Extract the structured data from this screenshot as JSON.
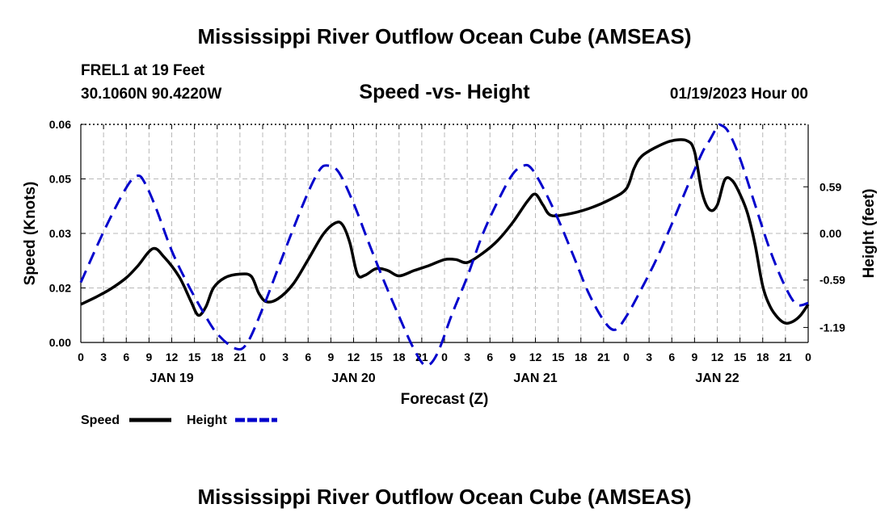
{
  "header": {
    "title": "Mississippi River Outflow Ocean Cube (AMSEAS)",
    "station": "FREL1 at 19 Feet",
    "coordinates": "30.1060N  90.4220W",
    "subtitle": "Speed -vs- Height",
    "run_time": "01/19/2023 Hour 00"
  },
  "footer": {
    "title": "Mississippi River Outflow Ocean Cube (AMSEAS)"
  },
  "chart_data": {
    "type": "line",
    "xlabel": "Forecast (Z)",
    "ylabel_left": "Speed (Knots)",
    "ylabel_right": "Height (feet)",
    "x_range_hours": [
      0,
      96
    ],
    "x_ticks": [
      "0",
      "3",
      "6",
      "9",
      "12",
      "15",
      "18",
      "21",
      "0",
      "3",
      "6",
      "9",
      "12",
      "15",
      "18",
      "21",
      "0",
      "3",
      "6",
      "9",
      "12",
      "15",
      "18",
      "21",
      "0",
      "3",
      "6",
      "9",
      "12",
      "15",
      "18",
      "21",
      "0"
    ],
    "date_labels": [
      {
        "label": "JAN 19",
        "hour": 12
      },
      {
        "label": "JAN 20",
        "hour": 36
      },
      {
        "label": "JAN 21",
        "hour": 60
      },
      {
        "label": "JAN 22",
        "hour": 84
      }
    ],
    "y_left": {
      "ylim": [
        0,
        0.06
      ],
      "ticks": [
        "0.00",
        "0.02",
        "0.03",
        "0.05",
        "0.06"
      ],
      "tick_values": [
        0,
        0.015,
        0.03,
        0.045,
        0.06
      ]
    },
    "y_right": {
      "ylim": [
        -1.38,
        1.38
      ],
      "ticks": [
        "-1.19",
        "-0.59",
        "0.00",
        "0.59"
      ],
      "tick_values": [
        -1.19,
        -0.59,
        0.0,
        0.59
      ]
    },
    "grid": true,
    "legend": [
      {
        "name": "Speed",
        "color": "#000000",
        "style": "solid"
      },
      {
        "name": "Height",
        "color": "#0000cc",
        "style": "dashed"
      }
    ],
    "series": [
      {
        "name": "Speed",
        "axis": "left",
        "color": "#000000",
        "points": [
          [
            0,
            0.0105
          ],
          [
            2,
            0.0125
          ],
          [
            4,
            0.0148
          ],
          [
            6,
            0.0178
          ],
          [
            7.5,
            0.021
          ],
          [
            9.5,
            0.0258
          ],
          [
            11,
            0.0235
          ],
          [
            13,
            0.018
          ],
          [
            14.5,
            0.0115
          ],
          [
            15.5,
            0.0075
          ],
          [
            16.5,
            0.0098
          ],
          [
            17.5,
            0.015
          ],
          [
            19,
            0.0178
          ],
          [
            21,
            0.0188
          ],
          [
            22.5,
            0.0182
          ],
          [
            23.5,
            0.0135
          ],
          [
            24.5,
            0.0112
          ],
          [
            26,
            0.012
          ],
          [
            28,
            0.016
          ],
          [
            30,
            0.0228
          ],
          [
            32,
            0.0298
          ],
          [
            33.5,
            0.0328
          ],
          [
            34.5,
            0.0325
          ],
          [
            35.5,
            0.0275
          ],
          [
            36.5,
            0.0188
          ],
          [
            37.5,
            0.0185
          ],
          [
            39,
            0.0203
          ],
          [
            40.5,
            0.0198
          ],
          [
            42,
            0.0183
          ],
          [
            44,
            0.0198
          ],
          [
            46,
            0.0212
          ],
          [
            48,
            0.0228
          ],
          [
            49.5,
            0.0228
          ],
          [
            51,
            0.022
          ],
          [
            53,
            0.0245
          ],
          [
            55,
            0.028
          ],
          [
            57,
            0.033
          ],
          [
            59,
            0.039
          ],
          [
            60,
            0.0408
          ],
          [
            61,
            0.0378
          ],
          [
            62,
            0.035
          ],
          [
            64,
            0.0352
          ],
          [
            67,
            0.0368
          ],
          [
            70,
            0.0395
          ],
          [
            72,
            0.0423
          ],
          [
            73,
            0.0478
          ],
          [
            74,
            0.0512
          ],
          [
            76,
            0.0538
          ],
          [
            78,
            0.0555
          ],
          [
            80,
            0.0555
          ],
          [
            81,
            0.0525
          ],
          [
            82,
            0.0412
          ],
          [
            83,
            0.0365
          ],
          [
            84,
            0.0378
          ],
          [
            85,
            0.0448
          ],
          [
            86,
            0.0445
          ],
          [
            87,
            0.0408
          ],
          [
            88,
            0.0355
          ],
          [
            89,
            0.0268
          ],
          [
            90,
            0.0155
          ],
          [
            91,
            0.0098
          ],
          [
            92,
            0.0068
          ],
          [
            93,
            0.0053
          ],
          [
            94,
            0.0058
          ],
          [
            95,
            0.0075
          ],
          [
            96,
            0.0105
          ]
        ]
      },
      {
        "name": "Height",
        "axis": "right",
        "color": "#0000cc",
        "points": [
          [
            0,
            -0.62
          ],
          [
            3,
            0.02
          ],
          [
            6,
            0.58
          ],
          [
            7.5,
            0.73
          ],
          [
            8.5,
            0.63
          ],
          [
            10,
            0.3
          ],
          [
            12,
            -0.22
          ],
          [
            14,
            -0.62
          ],
          [
            16,
            -0.97
          ],
          [
            18,
            -1.27
          ],
          [
            20.5,
            -1.46
          ],
          [
            22,
            -1.38
          ],
          [
            24,
            -0.95
          ],
          [
            26,
            -0.45
          ],
          [
            28,
            0.05
          ],
          [
            30,
            0.52
          ],
          [
            31.5,
            0.8
          ],
          [
            32.5,
            0.86
          ],
          [
            34,
            0.78
          ],
          [
            36,
            0.38
          ],
          [
            38,
            -0.12
          ],
          [
            40,
            -0.6
          ],
          [
            42,
            -1.05
          ],
          [
            44,
            -1.47
          ],
          [
            45.5,
            -1.67
          ],
          [
            47,
            -1.53
          ],
          [
            49,
            -1.02
          ],
          [
            51,
            -0.55
          ],
          [
            53,
            -0.02
          ],
          [
            55,
            0.4
          ],
          [
            57,
            0.75
          ],
          [
            58.5,
            0.86
          ],
          [
            59.5,
            0.82
          ],
          [
            61,
            0.58
          ],
          [
            63,
            0.18
          ],
          [
            65,
            -0.28
          ],
          [
            67,
            -0.75
          ],
          [
            69,
            -1.1
          ],
          [
            70.5,
            -1.22
          ],
          [
            72,
            -1.05
          ],
          [
            74,
            -0.7
          ],
          [
            76,
            -0.32
          ],
          [
            78,
            0.12
          ],
          [
            80,
            0.58
          ],
          [
            82,
            1.02
          ],
          [
            83,
            1.18
          ],
          [
            84,
            1.35
          ],
          [
            84.5,
            1.37
          ],
          [
            85.5,
            1.28
          ],
          [
            87,
            0.95
          ],
          [
            89,
            0.36
          ],
          [
            91,
            -0.22
          ],
          [
            93,
            -0.68
          ],
          [
            94.5,
            -0.9
          ],
          [
            96,
            -0.88
          ]
        ]
      }
    ]
  }
}
